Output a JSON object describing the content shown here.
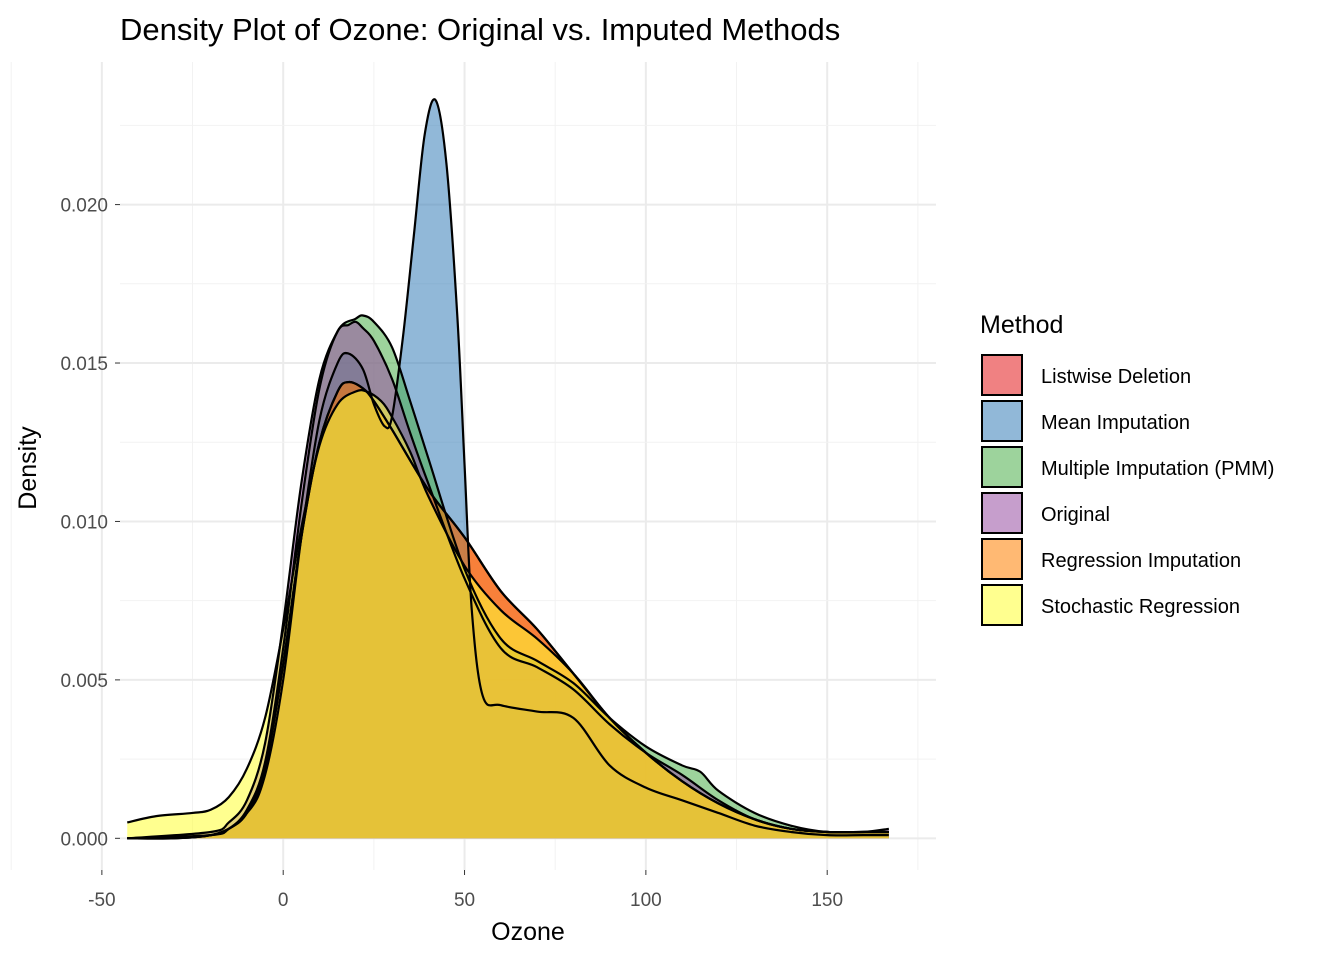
{
  "chart_data": {
    "type": "area",
    "title": "Density Plot of Ozone: Original vs. Imputed Methods",
    "xlabel": "Ozone",
    "ylabel": "Density",
    "xlim": [
      -45,
      180
    ],
    "ylim": [
      -0.001,
      0.0245
    ],
    "x_ticks": [
      -50,
      0,
      50,
      100,
      150
    ],
    "x_tick_labels": [
      "-50",
      "0",
      "50",
      "100",
      "150"
    ],
    "y_ticks": [
      0,
      0.005,
      0.01,
      0.015,
      0.02
    ],
    "y_tick_labels": [
      "0.000",
      "0.005",
      "0.010",
      "0.015",
      "0.020"
    ],
    "grid": true,
    "legend_title": "Method",
    "legend_position": "right",
    "fill_opacity": 0.55,
    "series": [
      {
        "name": "Listwise Deletion",
        "color": "#E41A1C",
        "x": [
          -43,
          -30,
          -20,
          -15,
          -10,
          -5,
          0,
          5,
          10,
          15,
          18,
          22,
          25,
          30,
          40,
          50,
          60,
          70,
          80,
          90,
          100,
          110,
          120,
          130,
          140,
          150,
          160,
          167
        ],
        "y": [
          0.0,
          0.0,
          0.0001,
          0.0003,
          0.0008,
          0.0022,
          0.0055,
          0.0095,
          0.0125,
          0.0141,
          0.0144,
          0.0142,
          0.0138,
          0.0129,
          0.011,
          0.0095,
          0.0078,
          0.0066,
          0.0052,
          0.0038,
          0.0027,
          0.0018,
          0.0011,
          0.0006,
          0.0003,
          0.0002,
          0.0002,
          0.0002
        ]
      },
      {
        "name": "Mean Imputation",
        "color": "#377EB8",
        "x": [
          -43,
          -20,
          -10,
          -5,
          0,
          5,
          10,
          15,
          18,
          22,
          25,
          28,
          30,
          33,
          36,
          39,
          42,
          45,
          48,
          50,
          52,
          55,
          60,
          70,
          80,
          90,
          100,
          110,
          120,
          130,
          140,
          150,
          160,
          167
        ],
        "y": [
          0.0,
          0.0001,
          0.0008,
          0.002,
          0.005,
          0.0095,
          0.0132,
          0.015,
          0.0153,
          0.0148,
          0.0137,
          0.013,
          0.0133,
          0.0158,
          0.019,
          0.0222,
          0.0233,
          0.0213,
          0.0165,
          0.0118,
          0.0072,
          0.0045,
          0.0042,
          0.004,
          0.0038,
          0.0023,
          0.0016,
          0.0012,
          0.0008,
          0.0004,
          0.0002,
          0.0001,
          0.0001,
          0.0001
        ]
      },
      {
        "name": "Multiple Imputation (PMM)",
        "color": "#4DAF4A",
        "x": [
          -43,
          -20,
          -15,
          -10,
          -5,
          0,
          5,
          10,
          15,
          20,
          22,
          25,
          30,
          35,
          40,
          50,
          60,
          70,
          80,
          90,
          100,
          110,
          115,
          120,
          130,
          140,
          150,
          160,
          167
        ],
        "y": [
          0.0,
          0.0001,
          0.0003,
          0.0009,
          0.0024,
          0.006,
          0.0105,
          0.0142,
          0.016,
          0.0164,
          0.0165,
          0.0163,
          0.0155,
          0.0138,
          0.012,
          0.0085,
          0.0063,
          0.0056,
          0.0049,
          0.0038,
          0.0029,
          0.0023,
          0.0021,
          0.0015,
          0.0008,
          0.0004,
          0.0002,
          0.0002,
          0.0002
        ]
      },
      {
        "name": "Original",
        "color": "#984EA3",
        "x": [
          -43,
          -20,
          -15,
          -10,
          -5,
          0,
          5,
          10,
          15,
          18,
          20,
          22,
          25,
          30,
          35,
          40,
          50,
          60,
          70,
          80,
          90,
          100,
          110,
          120,
          130,
          140,
          150,
          160,
          167
        ],
        "y": [
          0.0,
          0.0002,
          0.0005,
          0.0012,
          0.003,
          0.0068,
          0.0112,
          0.0145,
          0.016,
          0.0162,
          0.0163,
          0.0161,
          0.0157,
          0.0145,
          0.0128,
          0.0112,
          0.0082,
          0.006,
          0.0054,
          0.0047,
          0.0036,
          0.0027,
          0.002,
          0.0012,
          0.0006,
          0.0003,
          0.0002,
          0.0002,
          0.0003
        ]
      },
      {
        "name": "Regression Imputation",
        "color": "#FF7F00",
        "x": [
          -43,
          -30,
          -20,
          -15,
          -10,
          -5,
          0,
          5,
          10,
          15,
          18,
          22,
          25,
          30,
          40,
          50,
          60,
          70,
          80,
          90,
          100,
          110,
          120,
          130,
          140,
          150,
          160,
          167
        ],
        "y": [
          0.0,
          0.0,
          0.0001,
          0.0003,
          0.0008,
          0.0022,
          0.0055,
          0.0095,
          0.0125,
          0.0141,
          0.0144,
          0.0142,
          0.0138,
          0.0129,
          0.011,
          0.0095,
          0.0078,
          0.0066,
          0.0052,
          0.0038,
          0.0027,
          0.0018,
          0.0011,
          0.0006,
          0.0003,
          0.0002,
          0.0002,
          0.0002
        ]
      },
      {
        "name": "Stochastic Regression",
        "color": "#FFFF33",
        "x": [
          -43,
          -35,
          -25,
          -20,
          -15,
          -10,
          -5,
          0,
          5,
          10,
          15,
          20,
          23,
          27,
          30,
          35,
          40,
          50,
          60,
          70,
          80,
          90,
          100,
          110,
          120,
          130,
          140,
          150,
          160,
          167
        ],
        "y": [
          0.0005,
          0.0007,
          0.0008,
          0.0009,
          0.0013,
          0.0022,
          0.0038,
          0.0066,
          0.0098,
          0.0124,
          0.0137,
          0.0141,
          0.0141,
          0.0138,
          0.0133,
          0.0122,
          0.0108,
          0.0086,
          0.0072,
          0.0063,
          0.0052,
          0.0038,
          0.0027,
          0.0018,
          0.0011,
          0.0006,
          0.0003,
          0.0002,
          0.0002,
          0.0002
        ]
      }
    ]
  }
}
